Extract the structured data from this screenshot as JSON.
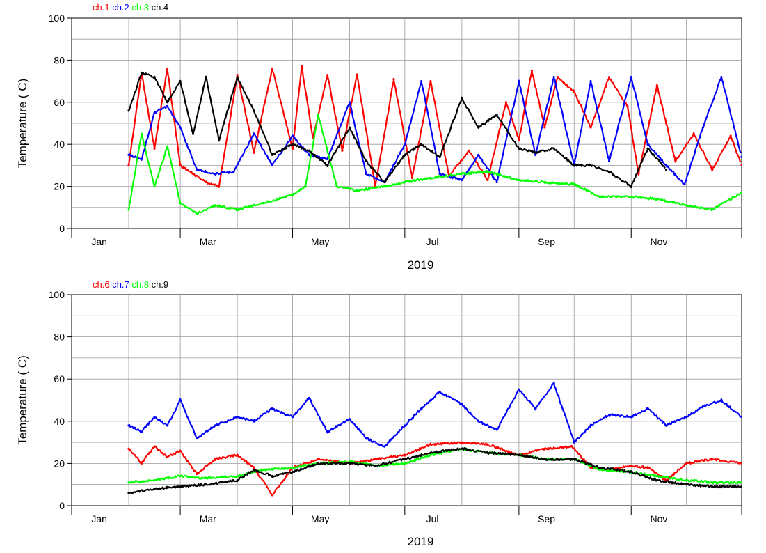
{
  "chart_data": [
    {
      "type": "scatter",
      "xlabel": "2019",
      "ylabel": "Temperature ( C)",
      "xlim": [
        "2019-01-01",
        "2019-12-31"
      ],
      "ylim": [
        0,
        100
      ],
      "yticks": [
        0,
        20,
        40,
        60,
        80,
        100
      ],
      "x_tick_labels": [
        "Jan",
        "Mar",
        "May",
        "Jul",
        "Sep",
        "Nov"
      ],
      "grid": true,
      "legend_position": "top-left",
      "series": [
        {
          "name": "ch.1",
          "color": "#ff0000",
          "x": [
            "2019-02-01",
            "2019-02-08",
            "2019-02-15",
            "2019-02-22",
            "2019-03-01",
            "2019-03-08",
            "2019-03-15",
            "2019-03-22",
            "2019-04-01",
            "2019-04-10",
            "2019-04-20",
            "2019-05-01",
            "2019-05-06",
            "2019-05-12",
            "2019-05-20",
            "2019-05-28",
            "2019-06-05",
            "2019-06-15",
            "2019-06-25",
            "2019-07-05",
            "2019-07-15",
            "2019-07-25",
            "2019-08-05",
            "2019-08-15",
            "2019-08-25",
            "2019-09-01",
            "2019-09-08",
            "2019-09-15",
            "2019-09-22",
            "2019-10-01",
            "2019-10-10",
            "2019-10-20",
            "2019-10-30",
            "2019-11-05",
            "2019-11-15",
            "2019-11-25",
            "2019-12-05",
            "2019-12-15",
            "2019-12-25",
            "2019-12-31"
          ],
          "y": [
            30,
            74,
            38,
            76,
            30,
            26,
            22,
            20,
            73,
            36,
            76,
            38,
            77,
            43,
            73,
            37,
            73,
            20,
            71,
            24,
            70,
            25,
            37,
            23,
            60,
            42,
            75,
            48,
            72,
            65,
            48,
            72,
            58,
            26,
            68,
            32,
            45,
            28,
            44,
            30
          ]
        },
        {
          "name": "ch.2",
          "color": "#0000ff",
          "x": [
            "2019-02-01",
            "2019-02-08",
            "2019-02-15",
            "2019-02-22",
            "2019-03-01",
            "2019-03-10",
            "2019-03-20",
            "2019-03-30",
            "2019-04-10",
            "2019-04-20",
            "2019-05-01",
            "2019-05-10",
            "2019-05-20",
            "2019-06-01",
            "2019-06-10",
            "2019-06-20",
            "2019-07-01",
            "2019-07-10",
            "2019-07-20",
            "2019-08-01",
            "2019-08-10",
            "2019-08-20",
            "2019-09-01",
            "2019-09-10",
            "2019-09-20",
            "2019-10-01",
            "2019-10-10",
            "2019-10-20",
            "2019-11-01",
            "2019-11-10",
            "2019-11-20",
            "2019-11-30",
            "2019-12-10",
            "2019-12-20",
            "2019-12-31"
          ],
          "y": [
            35,
            33,
            55,
            58,
            48,
            28,
            26,
            27,
            45,
            30,
            44,
            35,
            33,
            60,
            26,
            22,
            40,
            70,
            26,
            23,
            35,
            22,
            70,
            35,
            72,
            30,
            70,
            32,
            72,
            40,
            30,
            21,
            48,
            72,
            34
          ]
        },
        {
          "name": "ch.3",
          "color": "#00ff00",
          "x": [
            "2019-02-01",
            "2019-02-08",
            "2019-02-15",
            "2019-02-22",
            "2019-03-01",
            "2019-03-10",
            "2019-03-20",
            "2019-04-01",
            "2019-04-15",
            "2019-05-01",
            "2019-05-08",
            "2019-05-15",
            "2019-05-25",
            "2019-06-05",
            "2019-06-20",
            "2019-07-01",
            "2019-07-15",
            "2019-08-01",
            "2019-08-15",
            "2019-09-01",
            "2019-09-15",
            "2019-10-01",
            "2019-10-15",
            "2019-11-01",
            "2019-11-15",
            "2019-12-01",
            "2019-12-15",
            "2019-12-31"
          ],
          "y": [
            9,
            45,
            20,
            39,
            12,
            7,
            11,
            9,
            12,
            16,
            20,
            54,
            20,
            18,
            20,
            22,
            24,
            26,
            27,
            23,
            22,
            21,
            15,
            15,
            14,
            11,
            9,
            17
          ]
        },
        {
          "name": "ch.4",
          "color": "#000000",
          "x": [
            "2019-02-01",
            "2019-02-08",
            "2019-02-15",
            "2019-02-22",
            "2019-03-01",
            "2019-03-08",
            "2019-03-15",
            "2019-03-22",
            "2019-04-01",
            "2019-04-10",
            "2019-04-20",
            "2019-05-01",
            "2019-05-10",
            "2019-05-20",
            "2019-06-01",
            "2019-06-10",
            "2019-06-20",
            "2019-07-01",
            "2019-07-10",
            "2019-07-20",
            "2019-08-01",
            "2019-08-10",
            "2019-08-20",
            "2019-09-01",
            "2019-09-10",
            "2019-09-20",
            "2019-10-01",
            "2019-10-10",
            "2019-10-20",
            "2019-11-01",
            "2019-11-10",
            "2019-11-20"
          ],
          "y": [
            56,
            74,
            72,
            60,
            70,
            45,
            72,
            42,
            72,
            56,
            35,
            40,
            37,
            30,
            48,
            32,
            22,
            35,
            40,
            34,
            62,
            48,
            54,
            38,
            36,
            38,
            30,
            30,
            27,
            20,
            38,
            28
          ]
        }
      ]
    },
    {
      "type": "scatter",
      "xlabel": "2019",
      "ylabel": "Temperature ( C)",
      "xlim": [
        "2019-01-01",
        "2019-12-31"
      ],
      "ylim": [
        0,
        100
      ],
      "yticks": [
        0,
        20,
        40,
        60,
        80,
        100
      ],
      "x_tick_labels": [
        "Jan",
        "Mar",
        "May",
        "Jul",
        "Sep",
        "Nov"
      ],
      "grid": true,
      "legend_position": "top-left",
      "series": [
        {
          "name": "ch.6",
          "color": "#ff0000",
          "x": [
            "2019-02-01",
            "2019-02-08",
            "2019-02-15",
            "2019-02-22",
            "2019-03-01",
            "2019-03-10",
            "2019-03-20",
            "2019-04-01",
            "2019-04-10",
            "2019-04-20",
            "2019-05-01",
            "2019-05-15",
            "2019-06-01",
            "2019-06-15",
            "2019-07-01",
            "2019-07-15",
            "2019-08-01",
            "2019-08-15",
            "2019-09-01",
            "2019-09-15",
            "2019-09-30",
            "2019-10-10",
            "2019-10-20",
            "2019-11-01",
            "2019-11-10",
            "2019-11-20",
            "2019-12-01",
            "2019-12-15",
            "2019-12-31"
          ],
          "y": [
            27,
            20,
            28,
            23,
            26,
            15,
            22,
            24,
            18,
            5,
            18,
            22,
            20,
            22,
            24,
            29,
            30,
            29,
            24,
            27,
            28,
            18,
            17,
            19,
            18,
            12,
            20,
            22,
            20
          ]
        },
        {
          "name": "ch.7",
          "color": "#0000ff",
          "x": [
            "2019-02-01",
            "2019-02-08",
            "2019-02-15",
            "2019-02-22",
            "2019-03-01",
            "2019-03-10",
            "2019-03-20",
            "2019-04-01",
            "2019-04-10",
            "2019-04-20",
            "2019-05-01",
            "2019-05-10",
            "2019-05-20",
            "2019-06-01",
            "2019-06-10",
            "2019-06-20",
            "2019-07-01",
            "2019-07-10",
            "2019-07-20",
            "2019-08-01",
            "2019-08-10",
            "2019-08-20",
            "2019-09-01",
            "2019-09-10",
            "2019-09-20",
            "2019-10-01",
            "2019-10-10",
            "2019-10-20",
            "2019-11-01",
            "2019-11-10",
            "2019-11-20",
            "2019-12-01",
            "2019-12-10",
            "2019-12-20",
            "2019-12-31"
          ],
          "y": [
            38,
            35,
            42,
            38,
            50,
            32,
            38,
            42,
            40,
            46,
            42,
            51,
            35,
            41,
            32,
            28,
            38,
            46,
            54,
            48,
            40,
            36,
            55,
            46,
            58,
            30,
            38,
            43,
            42,
            46,
            38,
            42,
            47,
            50,
            42
          ]
        },
        {
          "name": "ch.8",
          "color": "#00ff00",
          "x": [
            "2019-02-01",
            "2019-02-15",
            "2019-03-01",
            "2019-03-15",
            "2019-04-01",
            "2019-04-15",
            "2019-05-01",
            "2019-05-15",
            "2019-06-01",
            "2019-06-15",
            "2019-07-01",
            "2019-07-15",
            "2019-08-01",
            "2019-08-15",
            "2019-09-01",
            "2019-09-15",
            "2019-10-01",
            "2019-10-15",
            "2019-11-01",
            "2019-11-15",
            "2019-12-01",
            "2019-12-15",
            "2019-12-31"
          ],
          "y": [
            11,
            12,
            14,
            13,
            14,
            17,
            18,
            20,
            21,
            19,
            20,
            24,
            27,
            25,
            24,
            22,
            22,
            17,
            16,
            14,
            12,
            11,
            11
          ]
        },
        {
          "name": "ch.9",
          "color": "#000000",
          "x": [
            "2019-02-01",
            "2019-02-15",
            "2019-03-01",
            "2019-03-15",
            "2019-04-01",
            "2019-04-10",
            "2019-04-20",
            "2019-05-01",
            "2019-05-15",
            "2019-06-01",
            "2019-06-15",
            "2019-07-01",
            "2019-07-15",
            "2019-08-01",
            "2019-08-15",
            "2019-09-01",
            "2019-09-15",
            "2019-10-01",
            "2019-10-15",
            "2019-11-01",
            "2019-11-15",
            "2019-12-01",
            "2019-12-15",
            "2019-12-31"
          ],
          "y": [
            6,
            8,
            9,
            10,
            12,
            17,
            14,
            16,
            20,
            20,
            19,
            22,
            25,
            27,
            25,
            24,
            22,
            22,
            18,
            16,
            12,
            10,
            9,
            9
          ]
        }
      ]
    }
  ]
}
